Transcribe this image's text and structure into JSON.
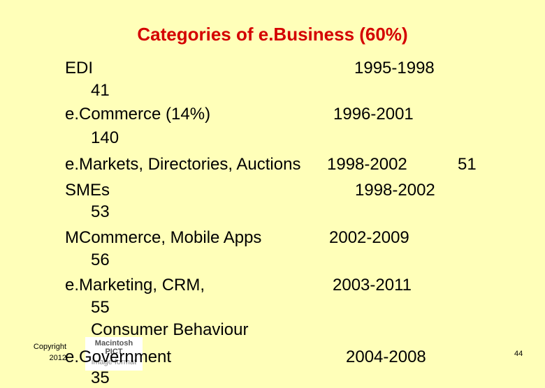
{
  "slide": {
    "title": "Categories of e.Business (60%)",
    "copyright": [
      "Copyright",
      "2012"
    ],
    "page_number": "44",
    "image_placeholder": [
      "Macintosh PICT",
      "image format"
    ]
  },
  "items": [
    {
      "label": "EDI",
      "years": "1995-1998",
      "count": "41"
    },
    {
      "label": "e.Commerce (14%)",
      "years": "1996-2001",
      "count": "140"
    },
    {
      "label": "e.Markets, Directories, Auctions",
      "years": "1998-2002",
      "count": "51"
    },
    {
      "label": "SMEs",
      "years": "1998-2002",
      "count": "53"
    },
    {
      "label": "MCommerce, Mobile Apps",
      "years": "2002-2009",
      "count": "56"
    },
    {
      "label": "e.Marketing, CRM,",
      "years": "2003-2011",
      "count": "55"
    },
    {
      "label": "Consumer Behaviour",
      "years": "",
      "count": ""
    },
    {
      "label": "e.Government",
      "years": "2004-2008",
      "count": "35"
    }
  ]
}
